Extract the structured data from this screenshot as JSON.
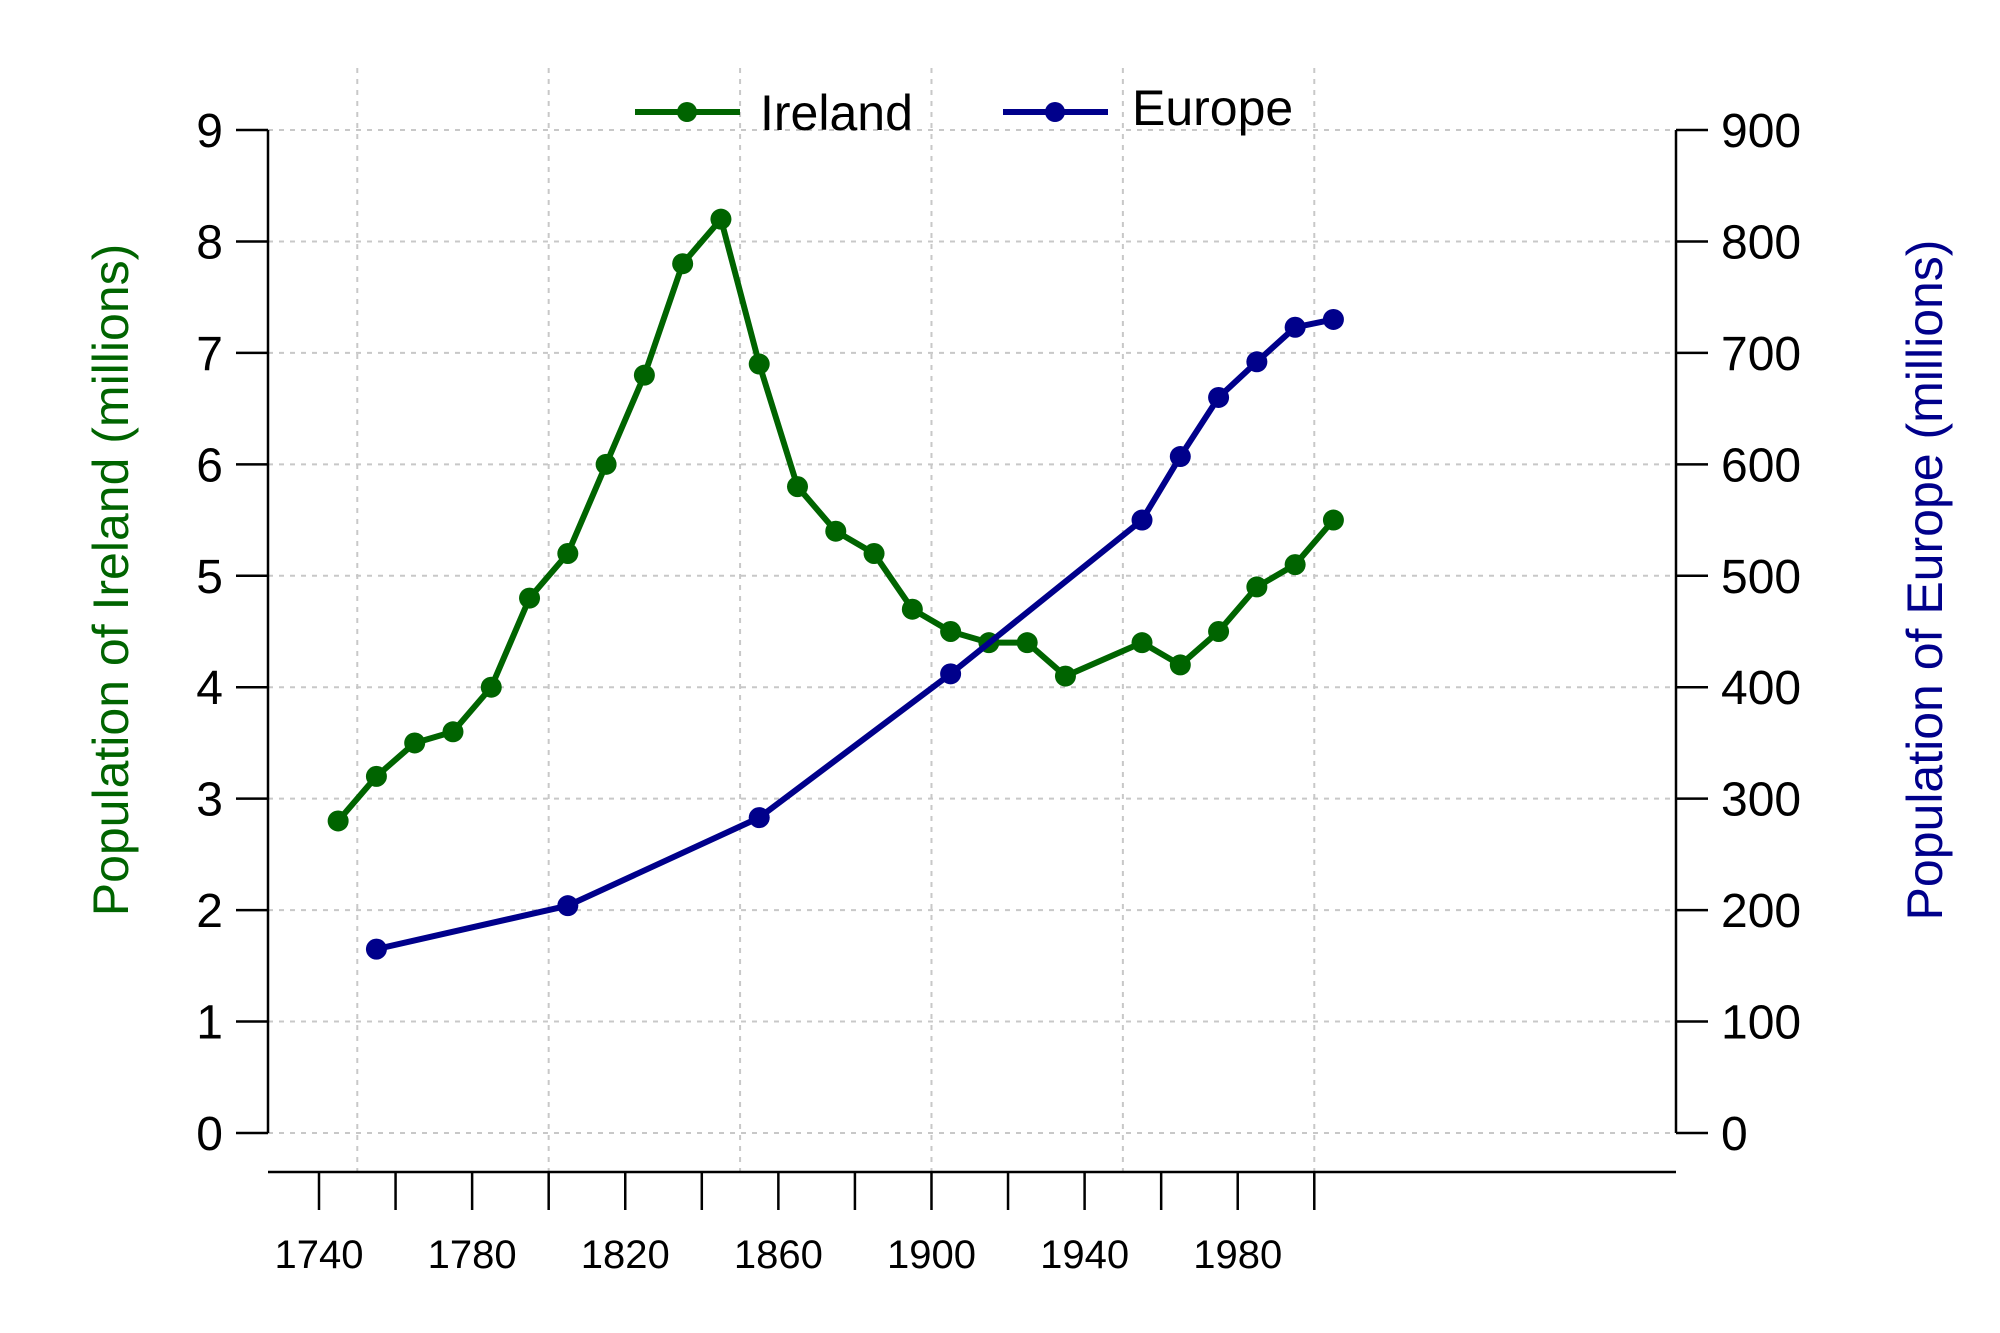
{
  "chart_data": {
    "type": "line",
    "title": "",
    "xlabel": "",
    "ylabel_left": "Population of Ireland (millions)",
    "ylabel_right": "Population of Europe (millions)",
    "xlim": [
      1735,
      2016
    ],
    "x_ticks_major": [
      1740,
      1780,
      1820,
      1860,
      1900,
      1940,
      1980
    ],
    "x_ticks_minor": [
      1760,
      1800,
      1840,
      1880,
      1920,
      1960,
      2000
    ],
    "x_grid": [
      1750,
      1800,
      1850,
      1900,
      1950,
      2000
    ],
    "ylim_left": [
      0,
      9
    ],
    "ylim_right": [
      0,
      900
    ],
    "y_ticks_left": [
      0,
      1,
      2,
      3,
      4,
      5,
      6,
      7,
      8,
      9
    ],
    "y_ticks_right": [
      0,
      100,
      200,
      300,
      400,
      500,
      600,
      700,
      800,
      900
    ],
    "grid": true,
    "legend_position": "top-center",
    "series": [
      {
        "name": "Ireland",
        "axis": "left",
        "color": "#006400",
        "x": [
          1745,
          1755,
          1765,
          1775,
          1785,
          1795,
          1805,
          1815,
          1825,
          1835,
          1845,
          1855,
          1865,
          1875,
          1885,
          1895,
          1905,
          1915,
          1925,
          1935,
          1955,
          1965,
          1975,
          1985,
          1995,
          2005
        ],
        "y": [
          2.8,
          3.2,
          3.5,
          3.6,
          4.0,
          4.8,
          5.2,
          6.0,
          6.8,
          7.8,
          8.2,
          6.9,
          5.8,
          5.4,
          5.2,
          4.7,
          4.5,
          4.4,
          4.4,
          4.1,
          4.4,
          4.2,
          4.5,
          4.9,
          5.1,
          5.5
        ]
      },
      {
        "name": "Europe",
        "axis": "right",
        "color": "#00008b",
        "x": [
          1755,
          1805,
          1855,
          1905,
          1955,
          1965,
          1975,
          1985,
          1995,
          2005
        ],
        "y": [
          165,
          204,
          283,
          412,
          550,
          607,
          660,
          692,
          723,
          730
        ]
      }
    ]
  }
}
